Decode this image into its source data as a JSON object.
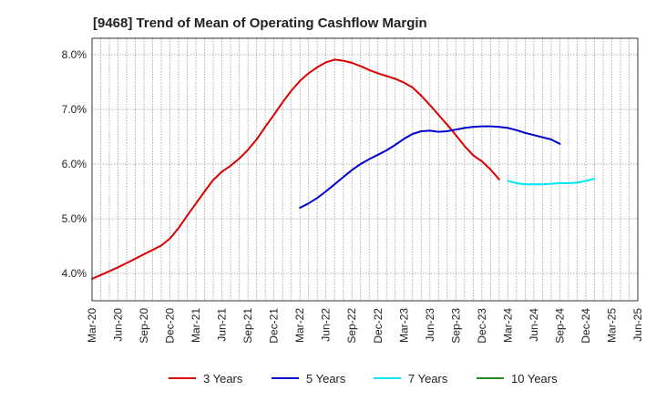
{
  "chart_data": {
    "type": "line",
    "title": "[9468]  Trend of Mean of Operating Cashflow Margin",
    "xlabel": "",
    "ylabel": "",
    "x_ticks": [
      "Mar-20",
      "Jun-20",
      "Sep-20",
      "Dec-20",
      "Mar-21",
      "Jun-21",
      "Sep-21",
      "Dec-21",
      "Mar-22",
      "Jun-22",
      "Sep-22",
      "Dec-22",
      "Mar-23",
      "Jun-23",
      "Sep-23",
      "Dec-23",
      "Mar-24",
      "Jun-24",
      "Sep-24",
      "Dec-24",
      "Mar-25",
      "Jun-25"
    ],
    "y_ticks": [
      "4.0%",
      "5.0%",
      "6.0%",
      "7.0%",
      "8.0%"
    ],
    "ylim": [
      3.5,
      8.3
    ],
    "grid": true,
    "legend_position": "bottom",
    "series": [
      {
        "name": "3 Years",
        "color": "#dd0000",
        "start_index": 0,
        "values": [
          3.9,
          3.97,
          4.04,
          4.11,
          4.19,
          4.27,
          4.35,
          4.43,
          4.51,
          4.64,
          4.83,
          5.06,
          5.28,
          5.5,
          5.71,
          5.86,
          5.97,
          6.1,
          6.26,
          6.45,
          6.68,
          6.9,
          7.13,
          7.34,
          7.52,
          7.66,
          7.77,
          7.86,
          7.91,
          7.89,
          7.85,
          7.79,
          7.72,
          7.66,
          7.61,
          7.56,
          7.49,
          7.4,
          7.25,
          7.08,
          6.9,
          6.72,
          6.53,
          6.33,
          6.16,
          6.05,
          5.9,
          5.72
        ]
      },
      {
        "name": "5 Years",
        "color": "#0000cc",
        "start_index": 24,
        "values": [
          5.2,
          5.28,
          5.38,
          5.5,
          5.63,
          5.76,
          5.89,
          6.0,
          6.09,
          6.17,
          6.25,
          6.35,
          6.46,
          6.55,
          6.6,
          6.61,
          6.59,
          6.6,
          6.63,
          6.66,
          6.68,
          6.69,
          6.69,
          6.68,
          6.66,
          6.62,
          6.57,
          6.53,
          6.49,
          6.45,
          6.37
        ]
      },
      {
        "name": "7 Years",
        "color": "#00e5ee",
        "start_index": 48,
        "values": [
          5.69,
          5.65,
          5.63,
          5.63,
          5.63,
          5.64,
          5.65,
          5.65,
          5.66,
          5.69,
          5.73
        ]
      },
      {
        "name": "10 Years",
        "color": "#228b22",
        "start_index": 0,
        "values": []
      }
    ]
  }
}
